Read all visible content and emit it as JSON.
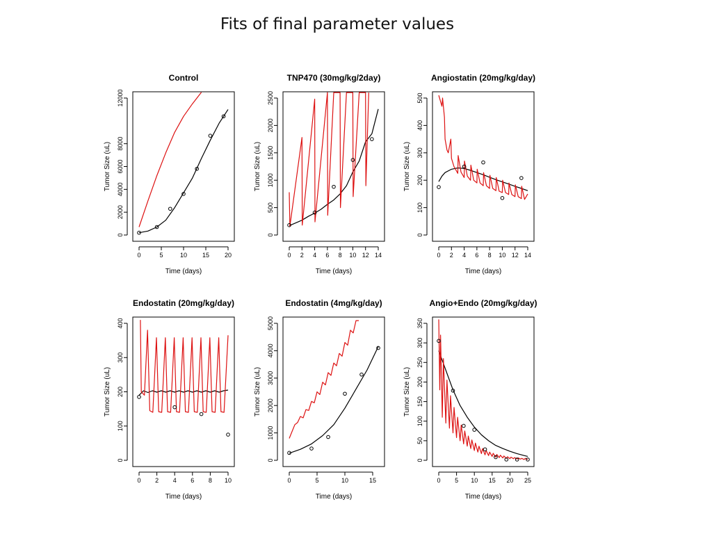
{
  "page_title": "Fits of final parameter values",
  "colors": {
    "observed": "#000000",
    "fit_black": "#000000",
    "fit_red": "#dd1111"
  },
  "chart_data": [
    {
      "type": "line",
      "title": "Control",
      "xlabel": "Time (days)",
      "ylabel": "Tumor Size (uL)",
      "xlim": [
        0,
        20
      ],
      "ylim": [
        0,
        12000
      ],
      "xticks": [
        0,
        5,
        10,
        15,
        20
      ],
      "yticks": [
        0,
        2000,
        4000,
        6000,
        8000,
        12000
      ],
      "observed": {
        "x": [
          0,
          4,
          7,
          10,
          13,
          16,
          19
        ],
        "y": [
          200,
          700,
          2300,
          3600,
          5800,
          8700,
          10400
        ]
      },
      "series": [
        {
          "color": "black",
          "x": [
            0,
            2,
            4,
            6,
            8,
            10,
            12,
            14,
            16,
            18,
            20
          ],
          "y": [
            200,
            350,
            700,
            1300,
            2400,
            3700,
            5000,
            6700,
            8300,
            9800,
            11000
          ]
        },
        {
          "color": "red",
          "x": [
            0,
            2,
            4,
            6,
            8,
            10,
            12,
            14
          ],
          "y": [
            700,
            3000,
            5200,
            7200,
            9000,
            10400,
            11500,
            12500
          ]
        }
      ]
    },
    {
      "type": "line",
      "title": "TNP470 (30mg/kg/2day)",
      "xlabel": "Time (days)",
      "ylabel": "Tumor Size (uL)",
      "xlim": [
        0,
        14
      ],
      "ylim": [
        0,
        2500
      ],
      "xticks": [
        0,
        2,
        4,
        6,
        8,
        10,
        12,
        14
      ],
      "yticks": [
        0,
        500,
        1000,
        1500,
        2000,
        2500
      ],
      "observed": {
        "x": [
          0,
          4,
          7,
          10,
          13
        ],
        "y": [
          180,
          410,
          880,
          1370,
          1750
        ]
      },
      "series": [
        {
          "color": "black",
          "x": [
            0,
            1,
            2,
            3,
            4,
            5,
            6,
            7,
            8,
            9,
            10,
            11,
            12,
            13,
            14
          ],
          "y": [
            170,
            220,
            270,
            340,
            400,
            470,
            560,
            640,
            750,
            900,
            1150,
            1350,
            1700,
            1850,
            2300
          ]
        },
        {
          "color": "red",
          "x": [
            0,
            0.1,
            2,
            2.05,
            4,
            4.05,
            6,
            6.05,
            7,
            8,
            8.05,
            9,
            10,
            10.05,
            11,
            12,
            12.05,
            12.5
          ],
          "y": [
            780,
            160,
            1780,
            180,
            2480,
            240,
            2600,
            360,
            2600,
            2600,
            500,
            2600,
            2600,
            700,
            2600,
            2600,
            900,
            2600
          ]
        }
      ]
    },
    {
      "type": "line",
      "title": "Angiostatin (20mg/kg/day)",
      "xlabel": "Time (days)",
      "ylabel": "Tumor Size (uL)",
      "xlim": [
        0,
        14
      ],
      "ylim": [
        0,
        500
      ],
      "xticks": [
        0,
        2,
        4,
        6,
        8,
        10,
        12,
        14
      ],
      "yticks": [
        0,
        100,
        200,
        300,
        400,
        500
      ],
      "observed": {
        "x": [
          0,
          4,
          7,
          10,
          13
        ],
        "y": [
          175,
          250,
          265,
          135,
          208
        ]
      },
      "series": [
        {
          "color": "black",
          "x": [
            0,
            0.5,
            1,
            2,
            3,
            4,
            5,
            6,
            7,
            8,
            9,
            10,
            11,
            12,
            13,
            14
          ],
          "y": [
            195,
            215,
            228,
            240,
            245,
            243,
            236,
            228,
            220,
            211,
            202,
            194,
            186,
            178,
            170,
            162
          ]
        },
        {
          "color": "red",
          "x": [
            0,
            0.5,
            0.6,
            0.9,
            1,
            1.3,
            1.5,
            1.9,
            2,
            2.4,
            3,
            3.05,
            3.5,
            4,
            4.05,
            4.5,
            5,
            5.05,
            5.5,
            6,
            6.05,
            6.5,
            7,
            7.05,
            7.5,
            8,
            8.05,
            8.5,
            9,
            9.05,
            9.5,
            10,
            10.05,
            10.5,
            11,
            11.05,
            11.5,
            12,
            12.05,
            12.5,
            13,
            13.05,
            13.5,
            14
          ],
          "y": [
            510,
            470,
            500,
            430,
            350,
            310,
            300,
            350,
            280,
            250,
            225,
            290,
            230,
            210,
            270,
            215,
            200,
            255,
            200,
            190,
            240,
            190,
            180,
            228,
            180,
            170,
            218,
            170,
            162,
            210,
            160,
            155,
            200,
            155,
            148,
            190,
            148,
            140,
            183,
            140,
            133,
            178,
            130,
            150
          ]
        }
      ]
    },
    {
      "type": "line",
      "title": "Endostatin (20mg/kg/day)",
      "xlabel": "Time (days)",
      "ylabel": "Tumor Size (uL)",
      "xlim": [
        0,
        10
      ],
      "ylim": [
        0,
        400
      ],
      "xticks": [
        0,
        2,
        4,
        6,
        8,
        10
      ],
      "yticks": [
        0,
        100,
        200,
        300,
        400
      ],
      "observed": {
        "x": [
          0,
          4,
          7,
          10
        ],
        "y": [
          185,
          155,
          135,
          75
        ]
      },
      "series": [
        {
          "color": "black",
          "x": [
            0,
            0.5,
            1,
            1.5,
            2,
            2.5,
            3,
            3.5,
            4,
            4.5,
            5,
            5.5,
            6,
            6.5,
            7,
            7.5,
            8,
            8.5,
            9,
            9.5,
            10
          ],
          "y": [
            190,
            203,
            198,
            203,
            199,
            203,
            199,
            203,
            199,
            203,
            199,
            203,
            199,
            203,
            199,
            203,
            199,
            203,
            199,
            203,
            205
          ]
        },
        {
          "color": "red",
          "x": [
            0.15,
            0.25,
            0.6,
            0.95,
            1.2,
            1.55,
            1.95,
            2.2,
            2.55,
            2.95,
            3.2,
            3.55,
            3.95,
            4.2,
            4.55,
            4.95,
            5.2,
            5.55,
            5.95,
            6.2,
            6.55,
            6.95,
            7.2,
            7.55,
            7.95,
            8.2,
            8.55,
            8.95,
            9.2,
            9.55,
            10
          ],
          "y": [
            410,
            200,
            190,
            380,
            145,
            140,
            358,
            142,
            140,
            358,
            142,
            140,
            358,
            142,
            140,
            358,
            142,
            140,
            358,
            142,
            140,
            358,
            142,
            140,
            358,
            142,
            140,
            358,
            142,
            140,
            365
          ]
        }
      ]
    },
    {
      "type": "line",
      "title": "Endostatin (4mg/kg/day)",
      "xlabel": "Time (days)",
      "ylabel": "Tumor Size (uL)",
      "xlim": [
        0,
        16
      ],
      "ylim": [
        0,
        5000
      ],
      "xticks": [
        0,
        5,
        10,
        15
      ],
      "yticks": [
        0,
        1000,
        2000,
        3000,
        4000,
        5000
      ],
      "observed": {
        "x": [
          0,
          4,
          7,
          10,
          13,
          16
        ],
        "y": [
          270,
          430,
          850,
          2430,
          3130,
          4100
        ]
      },
      "series": [
        {
          "color": "black",
          "x": [
            0,
            2,
            4,
            6,
            8,
            10,
            12,
            14,
            16
          ],
          "y": [
            260,
            400,
            600,
            900,
            1300,
            1900,
            2600,
            3300,
            4150
          ]
        },
        {
          "color": "red",
          "x": [
            0,
            0.5,
            1,
            1.5,
            2,
            2.5,
            3,
            3.5,
            4,
            4.5,
            5,
            5.5,
            6,
            6.5,
            7,
            7.5,
            8,
            8.5,
            9,
            9.5,
            10,
            10.5,
            11,
            11.5,
            12,
            12.5
          ],
          "y": [
            800,
            1050,
            1300,
            1380,
            1600,
            1550,
            1850,
            1820,
            2150,
            2100,
            2500,
            2400,
            2850,
            2750,
            3200,
            3100,
            3550,
            3450,
            3900,
            3800,
            4300,
            4200,
            4750,
            4650,
            5100,
            5100
          ]
        }
      ]
    },
    {
      "type": "line",
      "title": "Angio+Endo (20mg/kg/day)",
      "xlabel": "Time (days)",
      "ylabel": "Tumor Size (uL)",
      "xlim": [
        0,
        25
      ],
      "ylim": [
        0,
        350
      ],
      "xticks": [
        0,
        5,
        10,
        15,
        20,
        25
      ],
      "yticks": [
        0,
        50,
        100,
        150,
        200,
        250,
        300,
        350
      ],
      "observed": {
        "x": [
          0,
          4,
          7,
          10,
          13,
          16,
          19,
          22,
          25
        ],
        "y": [
          305,
          178,
          88,
          78,
          28,
          8,
          2,
          2,
          2
        ]
      },
      "series": [
        {
          "color": "black",
          "x": [
            0,
            2,
            4,
            6,
            8,
            10,
            12,
            14,
            16,
            18,
            20,
            22,
            24,
            25
          ],
          "y": [
            280,
            230,
            180,
            140,
            110,
            85,
            65,
            50,
            38,
            30,
            23,
            17,
            12,
            10
          ]
        },
        {
          "color": "red",
          "x": [
            0,
            0.3,
            0.5,
            1,
            1.3,
            2,
            2.3,
            3,
            3.3,
            4,
            4.3,
            5,
            5.3,
            6,
            6.3,
            7,
            7.3,
            8,
            8.3,
            9,
            9.3,
            10,
            10.3,
            11,
            11.3,
            12,
            12.3,
            13,
            13.3,
            14,
            14.3,
            15,
            15.3,
            16,
            16.3,
            17,
            17.3,
            18,
            18.3,
            19,
            19.3,
            20,
            20.3,
            21,
            21.3,
            22,
            22.3,
            23,
            23.3,
            24,
            24.3,
            25
          ],
          "y": [
            360,
            180,
            320,
            110,
            260,
            95,
            205,
            82,
            165,
            70,
            135,
            58,
            110,
            50,
            90,
            42,
            75,
            36,
            62,
            30,
            52,
            25,
            44,
            21,
            36,
            17,
            30,
            14,
            25,
            12,
            21,
            10,
            18,
            8,
            15,
            7,
            13,
            6,
            11,
            5,
            9,
            4,
            8,
            4,
            7,
            3,
            6,
            3,
            5,
            2,
            5,
            2
          ]
        }
      ]
    }
  ]
}
